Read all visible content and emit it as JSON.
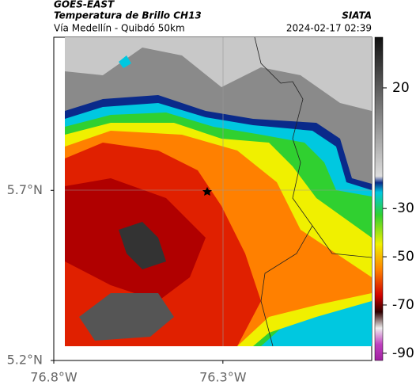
{
  "header": {
    "source": "GOES-EAST",
    "title": "Temperatura de Brillo CH13",
    "org": "SIATA",
    "subtitle": "Vía Medellín - Quibdó 50km",
    "datetime": "2024-02-17 02:39"
  },
  "map": {
    "xlim": [
      -76.8,
      -75.86
    ],
    "ylim": [
      5.2,
      6.15
    ],
    "xticks": [
      {
        "value": -76.8,
        "label": "76.8°W"
      },
      {
        "value": -76.3,
        "label": "76.3°W"
      }
    ],
    "yticks": [
      {
        "value": 5.2,
        "label": "5.2°N"
      },
      {
        "value": 5.7,
        "label": "5.7°N"
      }
    ]
  },
  "colorbar": {
    "lim": [
      -93,
      41
    ],
    "ticks": [
      20,
      -30,
      -50,
      -70,
      -90
    ]
  }
}
